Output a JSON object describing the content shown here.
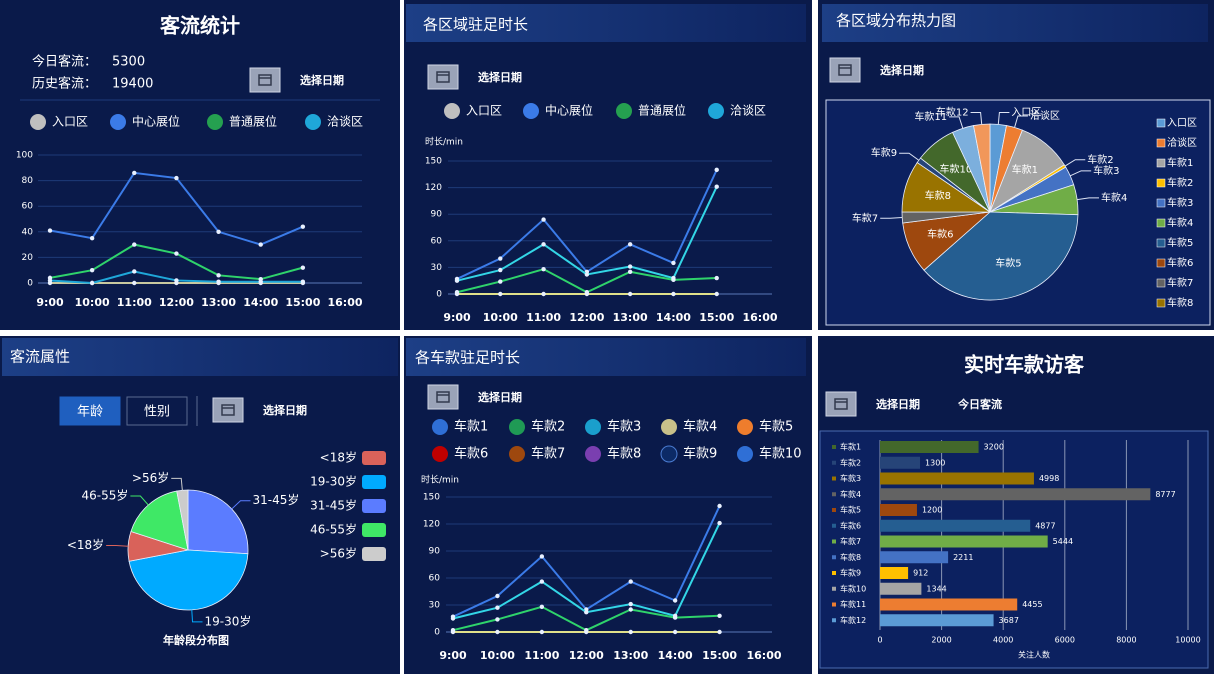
{
  "chart_data": [
    {
      "type": "line",
      "title": "客流统计",
      "stats": [
        {
          "label": "今日客流：",
          "value": 5300
        },
        {
          "label": "历史客流：",
          "value": 19400
        }
      ],
      "controls": [
        "选择日期"
      ],
      "categories": [
        "9:00",
        "10:00",
        "11:00",
        "12:00",
        "13:00",
        "14:00",
        "15:00",
        "16:00"
      ],
      "ylim": [
        0,
        100
      ],
      "yticks": [
        0,
        20,
        40,
        60,
        80,
        100
      ],
      "grid": true,
      "series": [
        {
          "name": "入口区",
          "color": "#c8c8a0",
          "legend_color": "#bfbfbf",
          "values": [
            0,
            0,
            0,
            0,
            0,
            0,
            0,
            null
          ]
        },
        {
          "name": "中心展位",
          "color": "#3b7be8",
          "legend_color": "#3b7be8",
          "values": [
            41,
            35,
            86,
            82,
            40,
            30,
            44,
            null
          ]
        },
        {
          "name": "普通展位",
          "color": "#2fd36b",
          "legend_color": "#25a050",
          "values": [
            4,
            10,
            30,
            23,
            6,
            3,
            12,
            null
          ]
        },
        {
          "name": "洽谈区",
          "color": "#1fa7d9",
          "legend_color": "#1fa7d9",
          "values": [
            2,
            0,
            9,
            2,
            1,
            1,
            1,
            null
          ]
        }
      ]
    },
    {
      "type": "line",
      "title": "各区域驻足时长",
      "controls": [
        "选择日期"
      ],
      "ylabel": "时长/min",
      "categories": [
        "9:00",
        "10:00",
        "11:00",
        "12:00",
        "13:00",
        "14:00",
        "15:00",
        "16:00"
      ],
      "ylim": [
        0,
        150
      ],
      "yticks": [
        0,
        30,
        60,
        90,
        120,
        150
      ],
      "grid": true,
      "series": [
        {
          "name": "入口区",
          "color": "#e0e08a",
          "legend_color": "#bfbfbf",
          "values": [
            0,
            0,
            0,
            0,
            0,
            0,
            0,
            null
          ]
        },
        {
          "name": "中心展位",
          "color": "#3b7be8",
          "legend_color": "#3b7be8",
          "values": [
            17,
            40,
            84,
            25,
            56,
            35,
            140,
            null
          ]
        },
        {
          "name": "普通展位",
          "color": "#2fd36b",
          "legend_color": "#25a050",
          "values": [
            2,
            14,
            28,
            2,
            25,
            16,
            18,
            null
          ]
        },
        {
          "name": "洽谈区",
          "color": "#33d6e6",
          "legend_color": "#1fa7d9",
          "values": [
            15,
            27,
            56,
            22,
            31,
            18,
            121,
            null
          ]
        }
      ]
    },
    {
      "type": "pie",
      "title": "各区域分布热力图",
      "controls": [
        "选择日期"
      ],
      "categories": [
        "入口区",
        "洽谈区",
        "车款1",
        "车款2",
        "车款3",
        "车款4",
        "车款5",
        "车款6",
        "车款7",
        "车款8",
        "车款9",
        "车款10",
        "车款11",
        "车款12"
      ],
      "values": [
        3,
        3,
        10,
        0.5,
        3.5,
        5.5,
        38,
        9.5,
        2,
        9.5,
        1,
        7.5,
        4,
        3
      ],
      "colors": [
        "#5b9bd5",
        "#ed7d31",
        "#a5a5a5",
        "#ffc000",
        "#4472c4",
        "#70ad47",
        "#255e91",
        "#9e480e",
        "#636363",
        "#997300",
        "#264478",
        "#43682b",
        "#7cafdd",
        "#f1975a"
      ]
    },
    {
      "type": "pie",
      "title": "客流属性",
      "tabs": [
        "年龄",
        "性别"
      ],
      "controls": [
        "选择日期"
      ],
      "subtitle": "年龄段分布图",
      "categories": [
        "31-45岁",
        "19-30岁",
        "<18岁",
        "46-55岁",
        ">56岁"
      ],
      "values": [
        26,
        46,
        8,
        17,
        3
      ],
      "colors": [
        "#5b7cff",
        "#00aaff",
        "#d9625a",
        "#3fe866",
        "#cccccc"
      ]
    },
    {
      "type": "line",
      "title": "各车款驻足时长",
      "controls": [
        "选择日期"
      ],
      "ylabel": "时长/min",
      "categories": [
        "9:00",
        "10:00",
        "11:00",
        "12:00",
        "13:00",
        "14:00",
        "15:00",
        "16:00"
      ],
      "ylim": [
        0,
        150
      ],
      "yticks": [
        0,
        30,
        60,
        90,
        120,
        150
      ],
      "grid": true,
      "series": [
        {
          "name": "车款1",
          "color": "#3b7be8",
          "legend_color": "#2f6fd6",
          "values": [
            17,
            40,
            84,
            25,
            56,
            35,
            140,
            null
          ]
        },
        {
          "name": "车款2",
          "color": "#2fd36b",
          "legend_color": "#1f9a55",
          "values": [
            2,
            14,
            28,
            2,
            25,
            16,
            18,
            null
          ]
        },
        {
          "name": "车款3",
          "color": "#33d6e6",
          "legend_color": "#1a9fcc",
          "values": [
            15,
            27,
            56,
            22,
            31,
            18,
            121,
            null
          ]
        },
        {
          "name": "车款4",
          "color": "#e0e08a",
          "legend_color": "#c8c08a",
          "values": [
            0,
            0,
            0,
            0,
            0,
            0,
            0,
            null
          ]
        },
        {
          "name": "车款5",
          "color": "#ee7d2d",
          "legend_color": "#ee7d2d",
          "values": [
            null,
            null,
            null,
            null,
            null,
            null,
            null,
            null
          ]
        },
        {
          "name": "车款6",
          "color": "#c00000",
          "legend_color": "#c00000",
          "values": [
            null,
            null,
            null,
            null,
            null,
            null,
            null,
            null
          ]
        },
        {
          "name": "车款7",
          "color": "#9e480e",
          "legend_color": "#9e480e",
          "values": [
            null,
            null,
            null,
            null,
            null,
            null,
            null,
            null
          ]
        },
        {
          "name": "车款8",
          "color": "#7a3fb0",
          "legend_color": "#7a3fb0",
          "values": [
            null,
            null,
            null,
            null,
            null,
            null,
            null,
            null
          ]
        },
        {
          "name": "车款9",
          "color": "#0c2a66",
          "legend_color": "#0c2a66",
          "values": [
            null,
            null,
            null,
            null,
            null,
            null,
            null,
            null
          ]
        },
        {
          "name": "车款10",
          "color": "#2f6fd6",
          "legend_color": "#2f6fd6",
          "values": [
            null,
            null,
            null,
            null,
            null,
            null,
            null,
            null
          ]
        }
      ]
    },
    {
      "type": "bar",
      "title": "实时车款访客",
      "controls": [
        "选择日期",
        "今日客流"
      ],
      "xlabel": "关注人数",
      "categories": [
        "车款1",
        "车款2",
        "车款3",
        "车款4",
        "车款5",
        "车款6",
        "车款7",
        "车款8",
        "车款9",
        "车款10",
        "车款11",
        "车款12"
      ],
      "values": [
        3200,
        1300,
        4998,
        8777,
        1200,
        4877,
        5444,
        2211,
        912,
        1344,
        4455,
        3687
      ],
      "colors": [
        "#43682b",
        "#264478",
        "#997300",
        "#636363",
        "#9e480e",
        "#255e91",
        "#70ad47",
        "#4472c4",
        "#ffc000",
        "#a5a5a5",
        "#ed7d31",
        "#5b9bd5"
      ],
      "xlim": [
        0,
        10000
      ],
      "xticks": [
        0,
        2000,
        4000,
        6000,
        8000,
        10000
      ],
      "grid": true
    }
  ]
}
